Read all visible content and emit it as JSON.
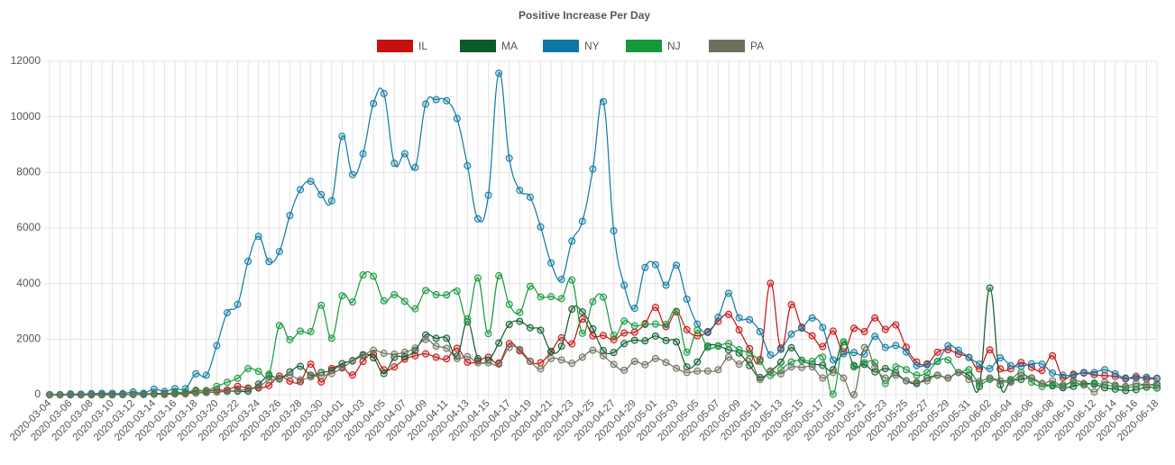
{
  "chart_data": {
    "type": "line",
    "title": "Positive Increase Per Day",
    "categories": [
      "2020-03-04",
      null,
      "2020-03-06",
      null,
      "2020-03-08",
      null,
      "2020-03-10",
      null,
      "2020-03-12",
      null,
      "2020-03-14",
      null,
      "2020-03-16",
      null,
      "2020-03-18",
      null,
      "2020-03-20",
      null,
      "2020-03-22",
      null,
      "2020-03-24",
      null,
      "2020-03-26",
      null,
      "2020-03-28",
      null,
      "2020-03-30",
      null,
      "2020-04-01",
      null,
      "2020-04-03",
      null,
      "2020-04-05",
      null,
      "2020-04-07",
      null,
      "2020-04-09",
      null,
      "2020-04-11",
      null,
      "2020-04-13",
      null,
      "2020-04-15",
      null,
      "2020-04-17",
      null,
      "2020-04-19",
      null,
      "2020-04-21",
      null,
      "2020-04-23",
      null,
      "2020-04-25",
      null,
      "2020-04-27",
      null,
      "2020-04-29",
      null,
      "2020-05-01",
      null,
      "2020-05-03",
      null,
      "2020-05-05",
      null,
      "2020-05-07",
      null,
      "2020-05-09",
      null,
      "2020-05-11",
      null,
      "2020-05-13",
      null,
      "2020-05-15",
      null,
      "2020-05-17",
      null,
      "2020-05-19",
      null,
      "2020-05-21",
      null,
      "2020-05-23",
      null,
      "2020-05-25",
      null,
      "2020-05-27",
      null,
      "2020-05-29",
      null,
      "2020-05-31",
      null,
      "2020-06-02",
      null,
      "2020-06-04",
      null,
      "2020-06-06",
      null,
      "2020-06-08",
      null,
      "2020-06-10",
      null,
      "2020-06-12",
      null,
      "2020-06-14",
      null,
      "2020-06-16",
      null,
      "2020-06-18"
    ],
    "series": [
      {
        "name": "IL",
        "color": "#c81010",
        "values": [
          0,
          0,
          0,
          0,
          0,
          0,
          0,
          10,
          6,
          13,
          18,
          12,
          29,
          33,
          130,
          130,
          170,
          170,
          300,
          240,
          240,
          330,
          670,
          490,
          470,
          1100,
          460,
          940,
          990,
          710,
          1200,
          1450,
          900,
          1000,
          1280,
          1400,
          1470,
          1350,
          1290,
          1670,
          1170,
          1220,
          1350,
          1140,
          1840,
          1580,
          1200,
          1150,
          1550,
          2050,
          1830,
          2720,
          2120,
          2130,
          1980,
          2220,
          2250,
          2560,
          3140,
          2450,
          2980,
          2340,
          2120,
          2270,
          2640,
          2890,
          2330,
          1660,
          1270,
          4010,
          1680,
          3240,
          2430,
          2120,
          1730,
          2290,
          1550,
          2390,
          2270,
          2760,
          2350,
          2510,
          1710,
          1180,
          1110,
          1530,
          1620,
          1460,
          1340,
          930,
          1610,
          930,
          930,
          1160,
          980,
          870,
          1400,
          620,
          740,
          780,
          720,
          690,
          660,
          570,
          660,
          570,
          590
        ]
      },
      {
        "name": "MA",
        "color": "#0a5a2a",
        "values": [
          0,
          0,
          0,
          0,
          0,
          0,
          0,
          10,
          20,
          30,
          40,
          50,
          40,
          50,
          60,
          80,
          100,
          120,
          130,
          130,
          380,
          680,
          580,
          820,
          1020,
          700,
          800,
          870,
          1120,
          1230,
          1440,
          1330,
          760,
          1340,
          1370,
          1590,
          2150,
          2030,
          2030,
          1390,
          2620,
          1300,
          1240,
          1860,
          2530,
          2640,
          2410,
          2320,
          1560,
          1750,
          3080,
          2980,
          2370,
          1590,
          1520,
          1840,
          1960,
          1940,
          2110,
          1950,
          1900,
          1000,
          1180,
          1750,
          1750,
          1610,
          1500,
          1050,
          620,
          850,
          1170,
          1690,
          1240,
          1100,
          1060,
          900,
          1900,
          1050,
          1090,
          820,
          940,
          790,
          500,
          400,
          600,
          700,
          600,
          800,
          700,
          300,
          3840,
          360,
          500,
          550,
          600,
          400,
          320,
          250,
          300,
          400,
          380,
          250,
          200,
          150,
          180,
          270,
          240
        ]
      },
      {
        "name": "NY",
        "color": "#0d78a3",
        "values": [
          0,
          0,
          30,
          20,
          40,
          50,
          50,
          40,
          100,
          50,
          200,
          120,
          220,
          220,
          750,
          700,
          1770,
          2950,
          3250,
          4800,
          5700,
          4790,
          5150,
          6450,
          7380,
          7680,
          7200,
          6980,
          9300,
          7920,
          8670,
          10480,
          10840,
          8330,
          8670,
          8180,
          10460,
          10620,
          10580,
          9940,
          8240,
          6330,
          7180,
          11570,
          8510,
          7360,
          7110,
          6040,
          4740,
          4150,
          5530,
          6240,
          8120,
          10550,
          5900,
          3940,
          3110,
          4580,
          4680,
          3940,
          4660,
          3440,
          2540,
          2240,
          2790,
          3650,
          2770,
          2700,
          2270,
          1430,
          1630,
          2180,
          2390,
          2760,
          2420,
          1250,
          1470,
          1520,
          1460,
          2100,
          1700,
          1770,
          1540,
          1050,
          1080,
          1200,
          1760,
          1600,
          1340,
          1100,
          940,
          1330,
          1050,
          1020,
          1110,
          1100,
          780,
          700,
          700,
          800,
          800,
          900,
          750,
          600,
          600,
          630,
          580
        ]
      },
      {
        "name": "NJ",
        "color": "#16993c",
        "values": [
          0,
          0,
          0,
          2,
          2,
          2,
          4,
          5,
          7,
          9,
          20,
          20,
          80,
          90,
          160,
          150,
          300,
          450,
          590,
          940,
          840,
          740,
          2490,
          1980,
          2290,
          2270,
          3220,
          2030,
          3560,
          3340,
          4310,
          4260,
          3380,
          3600,
          3360,
          3090,
          3750,
          3600,
          3590,
          3730,
          2730,
          4200,
          2200,
          4280,
          3250,
          2960,
          3900,
          3520,
          3530,
          3460,
          4130,
          2210,
          3350,
          3510,
          2140,
          2650,
          2480,
          2530,
          2540,
          2530,
          3000,
          1530,
          2320,
          1700,
          1760,
          1840,
          1620,
          1500,
          1200,
          690,
          900,
          1180,
          1240,
          1200,
          1350,
          20,
          1900,
          1000,
          1150,
          1150,
          400,
          1000,
          900,
          700,
          800,
          1200,
          1250,
          800,
          900,
          400,
          550,
          500,
          550,
          800,
          450,
          300,
          350,
          350,
          450,
          350,
          420,
          350,
          300,
          250,
          300,
          350,
          330
        ]
      },
      {
        "name": "PA",
        "color": "#6b705c",
        "values": [
          0,
          0,
          0,
          0,
          0,
          0,
          0,
          5,
          10,
          10,
          20,
          30,
          40,
          50,
          60,
          80,
          100,
          120,
          150,
          200,
          280,
          530,
          560,
          700,
          530,
          640,
          690,
          760,
          960,
          1210,
          1400,
          1600,
          1490,
          1460,
          1530,
          1680,
          1990,
          1750,
          1670,
          1300,
          1370,
          1150,
          1150,
          1100,
          1700,
          1630,
          1210,
          930,
          1300,
          1250,
          1130,
          1350,
          1600,
          1400,
          1090,
          880,
          1200,
          1080,
          1300,
          1160,
          950,
          800,
          850,
          850,
          900,
          1350,
          1100,
          1300,
          550,
          840,
          750,
          1000,
          980,
          1000,
          600,
          800,
          600,
          0,
          1700,
          1000,
          600,
          700,
          500,
          450,
          500,
          700,
          600,
          800,
          550,
          480,
          600,
          500,
          450,
          700,
          600,
          400,
          500,
          300,
          500,
          400,
          100,
          450,
          350,
          300,
          400,
          350,
          400
        ]
      }
    ],
    "ylim": [
      0,
      12000
    ],
    "yticks": [
      0,
      2000,
      4000,
      6000,
      8000,
      10000,
      12000
    ],
    "grid": true,
    "legend": "top"
  }
}
